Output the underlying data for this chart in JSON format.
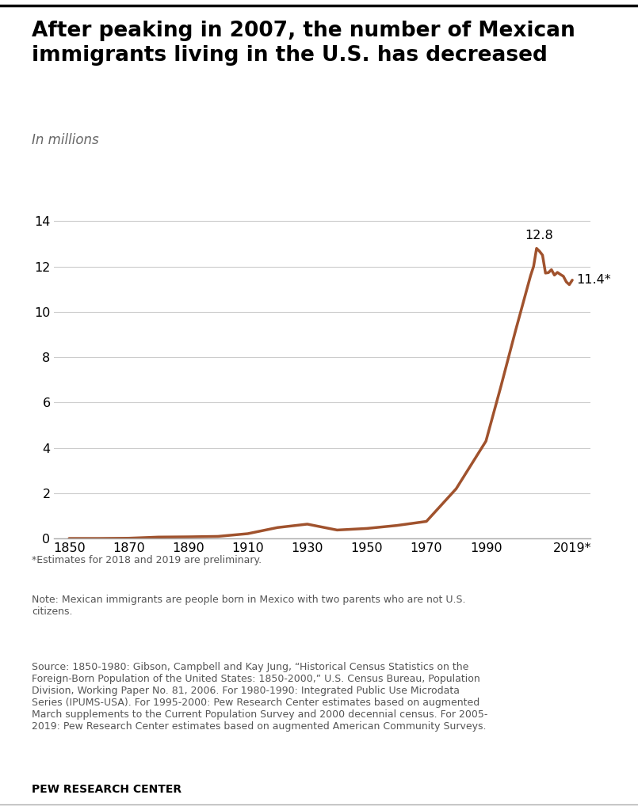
{
  "title": "After peaking in 2007, the number of Mexican\nimmigrants living in the U.S. has decreased",
  "subtitle": "In millions",
  "line_color": "#A0522D",
  "background_color": "#FFFFFF",
  "title_fontsize": 19,
  "subtitle_fontsize": 12,
  "annotation_peak": "12.8",
  "annotation_last": "11.4*",
  "footnote1": "*Estimates for 2018 and 2019 are preliminary.",
  "footnote2": "Note: Mexican immigrants are people born in Mexico with two parents who are not U.S.\ncitizens.",
  "footnote3": "Source: 1850-1980: Gibson, Campbell and Kay Jung, “Historical Census Statistics on the\nForeign-Born Population of the United States: 1850-2000,” U.S. Census Bureau, Population\nDivision, Working Paper No. 81, 2006. For 1980-1990: Integrated Public Use Microdata\nSeries (IPUMS-USA). For 1995-2000: Pew Research Center estimates based on augmented\nMarch supplements to the Current Population Survey and 2000 decennial census. For 2005-\n2019: Pew Research Center estimates based on augmented American Community Surveys.",
  "footer_label": "PEW RESEARCH CENTER",
  "years": [
    1850,
    1860,
    1870,
    1880,
    1890,
    1900,
    1910,
    1920,
    1930,
    1940,
    1950,
    1960,
    1970,
    1980,
    1990,
    1995,
    2000,
    2005,
    2006,
    2007,
    2008,
    2009,
    2010,
    2011,
    2012,
    2013,
    2014,
    2015,
    2016,
    2017,
    2018,
    2019
  ],
  "values": [
    0.01,
    0.01,
    0.02,
    0.07,
    0.08,
    0.1,
    0.22,
    0.49,
    0.64,
    0.38,
    0.45,
    0.58,
    0.76,
    2.2,
    4.3,
    6.7,
    9.2,
    11.6,
    12.0,
    12.8,
    12.67,
    12.5,
    11.71,
    11.73,
    11.86,
    11.62,
    11.74,
    11.65,
    11.57,
    11.32,
    11.2,
    11.4
  ],
  "ylim": [
    0,
    15
  ],
  "yticks": [
    0,
    2,
    4,
    6,
    8,
    10,
    12,
    14
  ],
  "xticks": [
    1850,
    1870,
    1890,
    1910,
    1930,
    1950,
    1970,
    1990,
    2019
  ],
  "xticklabels": [
    "1850",
    "1870",
    "1890",
    "1910",
    "1930",
    "1950",
    "1970",
    "1990",
    "2019*"
  ]
}
